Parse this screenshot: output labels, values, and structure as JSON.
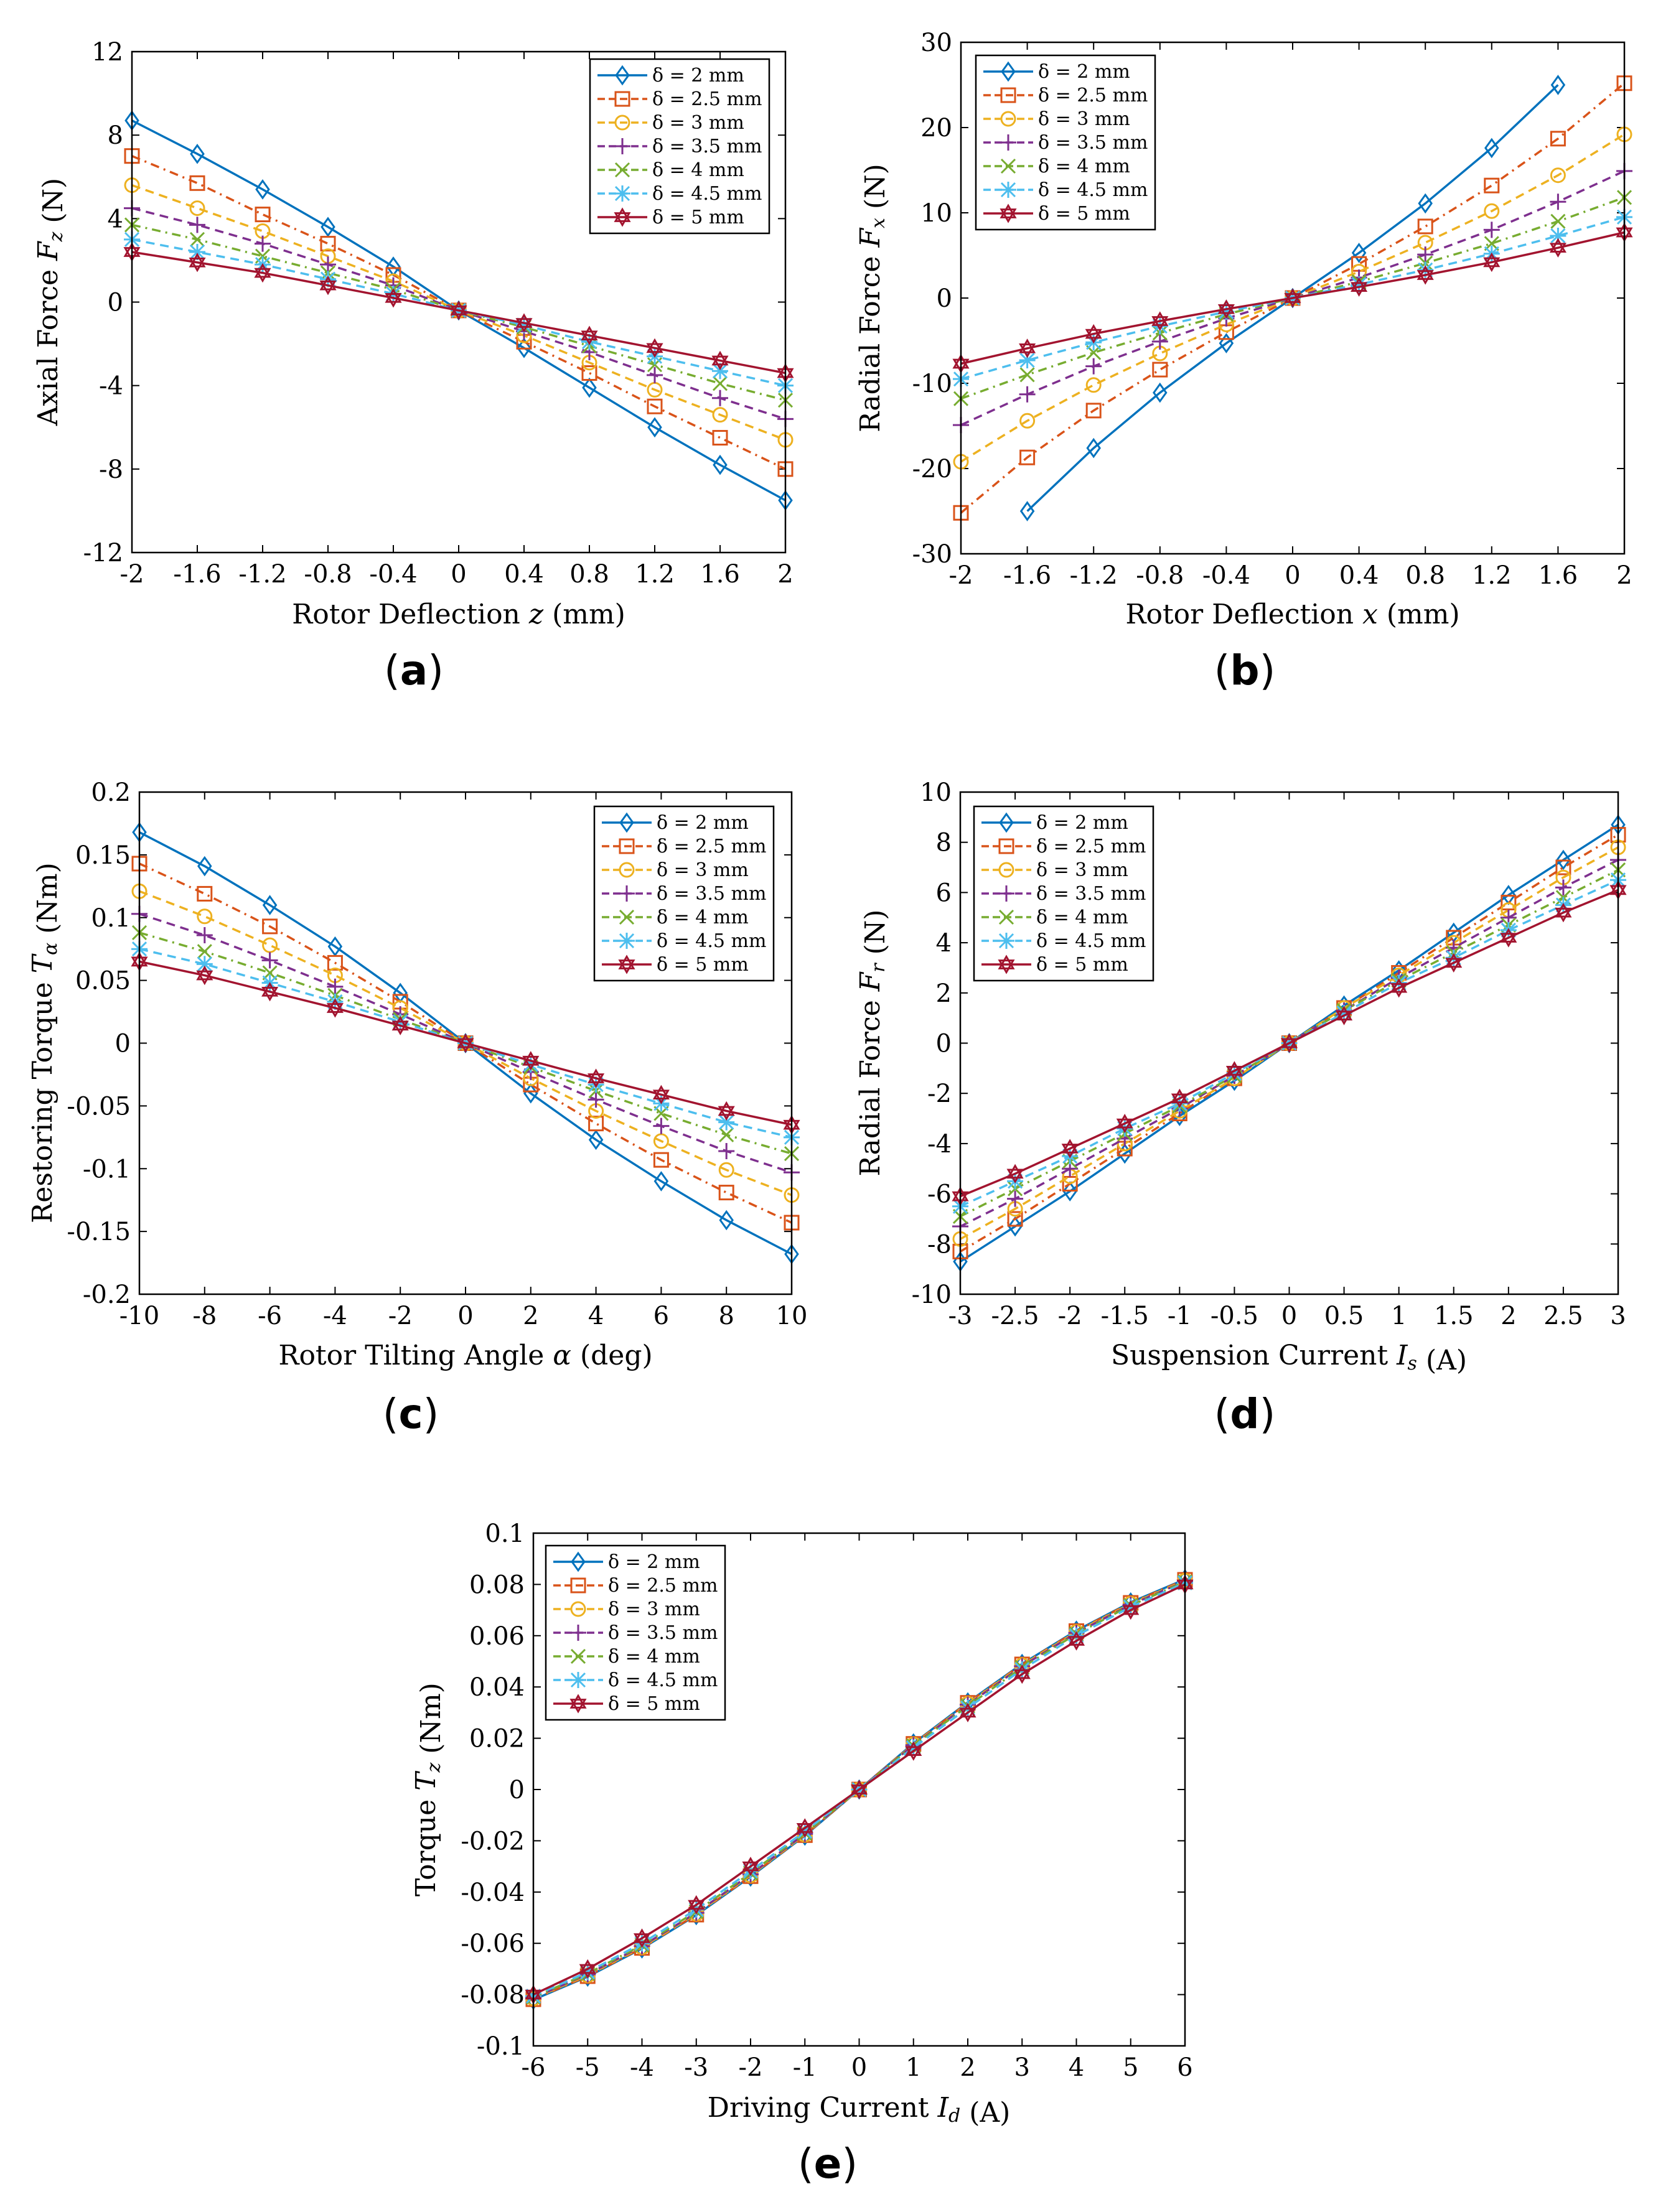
{
  "legend_labels": [
    "δ = 2 mm",
    "δ = 2.5 mm",
    "δ = 3 mm",
    "δ = 3.5 mm",
    "δ = 4 mm",
    "δ = 4.5 mm",
    "δ = 5 mm"
  ],
  "series_style": [
    {
      "color": "#0072BD",
      "dash": "",
      "marker": "diamond"
    },
    {
      "color": "#D95319",
      "dash": "14,8,3,8",
      "marker": "square"
    },
    {
      "color": "#EDB120",
      "dash": "14,9",
      "marker": "circle"
    },
    {
      "color": "#7E2F8E",
      "dash": "14,9",
      "marker": "plus"
    },
    {
      "color": "#77AC30",
      "dash": "14,8,3,8",
      "marker": "x"
    },
    {
      "color": "#4DBEEE",
      "dash": "14,9",
      "marker": "asterisk"
    },
    {
      "color": "#A2142F",
      "dash": "",
      "marker": "hexagram"
    }
  ],
  "chart_data": [
    {
      "id": "a",
      "type": "line",
      "caption": "(a)",
      "xlabel": "Rotor Deflection z (mm)",
      "ylabel": "Axial Force Fz (N)",
      "xlim": [
        -2,
        2
      ],
      "ylim": [
        -12,
        12
      ],
      "xticks": [
        -2,
        -1.6,
        -1.2,
        -0.8,
        -0.4,
        0,
        0.4,
        0.8,
        1.2,
        1.6,
        2
      ],
      "yticks": [
        -12,
        -8,
        -4,
        0,
        4,
        8,
        12
      ],
      "x": [
        -2,
        -1.6,
        -1.2,
        -0.8,
        -0.4,
        0,
        0.4,
        0.8,
        1.2,
        1.6,
        2
      ],
      "series": [
        {
          "name": "δ = 2 mm",
          "values": [
            8.7,
            7.1,
            5.4,
            3.6,
            1.7,
            -0.4,
            -2.2,
            -4.1,
            -6.0,
            -7.8,
            -9.5
          ]
        },
        {
          "name": "δ = 2.5 mm",
          "values": [
            7.0,
            5.7,
            4.2,
            2.8,
            1.3,
            -0.4,
            -1.9,
            -3.4,
            -5.0,
            -6.5,
            -8.0
          ]
        },
        {
          "name": "δ = 3 mm",
          "values": [
            5.6,
            4.5,
            3.4,
            2.2,
            1.0,
            -0.4,
            -1.6,
            -2.9,
            -4.2,
            -5.4,
            -6.6
          ]
        },
        {
          "name": "δ = 3.5 mm",
          "values": [
            4.5,
            3.7,
            2.8,
            1.8,
            0.8,
            -0.4,
            -1.4,
            -2.4,
            -3.5,
            -4.6,
            -5.6
          ]
        },
        {
          "name": "δ = 4 mm",
          "values": [
            3.7,
            3.0,
            2.2,
            1.4,
            0.6,
            -0.4,
            -1.2,
            -2.1,
            -3.0,
            -3.9,
            -4.7
          ]
        },
        {
          "name": "δ = 4.5 mm",
          "values": [
            3.0,
            2.4,
            1.8,
            1.1,
            0.4,
            -0.4,
            -1.1,
            -1.9,
            -2.6,
            -3.3,
            -4.0
          ]
        },
        {
          "name": "δ = 5 mm",
          "values": [
            2.4,
            1.9,
            1.4,
            0.8,
            0.2,
            -0.4,
            -1.0,
            -1.6,
            -2.2,
            -2.8,
            -3.4
          ]
        }
      ]
    },
    {
      "id": "b",
      "type": "line",
      "caption": "(b)",
      "xlabel": "Rotor Deflection x (mm)",
      "ylabel": "Radial Force Fx (N)",
      "xlim": [
        -2,
        2
      ],
      "ylim": [
        -30,
        30
      ],
      "xticks": [
        -2,
        -1.6,
        -1.2,
        -0.8,
        -0.4,
        0,
        0.4,
        0.8,
        1.2,
        1.6,
        2
      ],
      "yticks": [
        -30,
        -20,
        -10,
        0,
        10,
        20,
        30
      ],
      "x": [
        -2,
        -1.6,
        -1.2,
        -0.8,
        -0.4,
        0,
        0.4,
        0.8,
        1.2,
        1.6,
        2
      ],
      "series": [
        {
          "name": "δ = 2 mm",
          "values": [
            null,
            -25.0,
            -17.6,
            -11.1,
            -5.3,
            0,
            5.3,
            11.1,
            17.6,
            25.0,
            null
          ]
        },
        {
          "name": "δ = 2.5 mm",
          "values": [
            -25.2,
            -18.7,
            -13.2,
            -8.4,
            -4.0,
            0,
            4.0,
            8.4,
            13.2,
            18.7,
            25.2
          ]
        },
        {
          "name": "δ = 3 mm",
          "values": [
            -19.2,
            -14.4,
            -10.2,
            -6.5,
            -3.1,
            0,
            3.1,
            6.5,
            10.2,
            14.4,
            19.2
          ]
        },
        {
          "name": "δ = 3.5 mm",
          "values": [
            -14.9,
            -11.3,
            -8.0,
            -5.1,
            -2.4,
            0,
            2.4,
            5.1,
            8.0,
            11.3,
            14.9
          ]
        },
        {
          "name": "δ = 4 mm",
          "values": [
            -11.8,
            -9.0,
            -6.4,
            -4.1,
            -1.9,
            0,
            1.9,
            4.1,
            6.4,
            9.0,
            11.8
          ]
        },
        {
          "name": "δ = 4.5 mm",
          "values": [
            -9.5,
            -7.3,
            -5.2,
            -3.3,
            -1.6,
            0,
            1.6,
            3.3,
            5.2,
            7.3,
            9.5
          ]
        },
        {
          "name": "δ = 5 mm",
          "values": [
            -7.7,
            -5.9,
            -4.2,
            -2.7,
            -1.3,
            0,
            1.3,
            2.7,
            4.2,
            5.9,
            7.7
          ]
        }
      ]
    },
    {
      "id": "c",
      "type": "line",
      "caption": "(c)",
      "xlabel": "Rotor Tilting Angle α (deg)",
      "ylabel": "Restoring Torque Tα (Nm)",
      "xlim": [
        -10,
        10
      ],
      "ylim": [
        -0.2,
        0.2
      ],
      "xticks": [
        -10,
        -8,
        -6,
        -4,
        -2,
        0,
        2,
        4,
        6,
        8,
        10
      ],
      "yticks": [
        -0.2,
        -0.15,
        -0.1,
        -0.05,
        0,
        0.05,
        0.1,
        0.15,
        0.2
      ],
      "ytick_labels": [
        "-0.2",
        "-0.15",
        "-0.1",
        "-0.05",
        "0",
        "0.05",
        "0.1",
        "0.15",
        "0.2"
      ],
      "x": [
        -10,
        -8,
        -6,
        -4,
        -2,
        0,
        2,
        4,
        6,
        8,
        10
      ],
      "series": [
        {
          "name": "δ = 2 mm",
          "values": [
            0.168,
            0.141,
            0.11,
            0.077,
            0.04,
            0,
            -0.04,
            -0.077,
            -0.11,
            -0.141,
            -0.168
          ]
        },
        {
          "name": "δ = 2.5 mm",
          "values": [
            0.143,
            0.119,
            0.093,
            0.064,
            0.033,
            0,
            -0.033,
            -0.064,
            -0.093,
            -0.119,
            -0.143
          ]
        },
        {
          "name": "δ = 3 mm",
          "values": [
            0.121,
            0.101,
            0.078,
            0.054,
            0.028,
            0,
            -0.028,
            -0.054,
            -0.078,
            -0.101,
            -0.121
          ]
        },
        {
          "name": "δ = 3.5 mm",
          "values": [
            0.103,
            0.086,
            0.066,
            0.045,
            0.023,
            0,
            -0.023,
            -0.045,
            -0.066,
            -0.086,
            -0.103
          ]
        },
        {
          "name": "δ = 4 mm",
          "values": [
            0.088,
            0.073,
            0.056,
            0.038,
            0.019,
            0,
            -0.019,
            -0.038,
            -0.056,
            -0.073,
            -0.088
          ]
        },
        {
          "name": "δ = 4.5 mm",
          "values": [
            0.075,
            0.063,
            0.048,
            0.033,
            0.017,
            0,
            -0.017,
            -0.033,
            -0.048,
            -0.063,
            -0.075
          ]
        },
        {
          "name": "δ = 5 mm",
          "values": [
            0.065,
            0.054,
            0.041,
            0.028,
            0.014,
            0,
            -0.014,
            -0.028,
            -0.041,
            -0.054,
            -0.065
          ]
        }
      ]
    },
    {
      "id": "d",
      "type": "line",
      "caption": "(d)",
      "xlabel": "Suspension Current Is (A)",
      "ylabel": "Radial Force Fr (N)",
      "xlim": [
        -3,
        3
      ],
      "ylim": [
        -10,
        10
      ],
      "xticks": [
        -3,
        -2.5,
        -2,
        -1.5,
        -1,
        -0.5,
        0,
        0.5,
        1,
        1.5,
        2,
        2.5,
        3
      ],
      "yticks": [
        -10,
        -8,
        -6,
        -4,
        -2,
        0,
        2,
        4,
        6,
        8,
        10
      ],
      "x": [
        -3,
        -2.5,
        -2,
        -1.5,
        -1,
        -0.5,
        0,
        0.5,
        1,
        1.5,
        2,
        2.5,
        3
      ],
      "series": [
        {
          "name": "δ = 2 mm",
          "values": [
            -8.7,
            -7.3,
            -5.9,
            -4.4,
            -2.9,
            -1.5,
            0,
            1.5,
            2.9,
            4.4,
            5.9,
            7.3,
            8.7
          ]
        },
        {
          "name": "δ = 2.5 mm",
          "values": [
            -8.3,
            -7.0,
            -5.6,
            -4.2,
            -2.8,
            -1.4,
            0,
            1.4,
            2.8,
            4.2,
            5.6,
            7.0,
            8.3
          ]
        },
        {
          "name": "δ = 3 mm",
          "values": [
            -7.8,
            -6.6,
            -5.3,
            -4.0,
            -2.7,
            -1.4,
            0,
            1.4,
            2.7,
            4.0,
            5.3,
            6.6,
            7.8
          ]
        },
        {
          "name": "δ = 3.5 mm",
          "values": [
            -7.3,
            -6.2,
            -5.0,
            -3.8,
            -2.6,
            -1.3,
            0,
            1.3,
            2.6,
            3.8,
            5.0,
            6.2,
            7.3
          ]
        },
        {
          "name": "δ = 4 mm",
          "values": [
            -6.9,
            -5.8,
            -4.7,
            -3.6,
            -2.5,
            -1.3,
            0,
            1.3,
            2.5,
            3.6,
            4.7,
            5.8,
            6.9
          ]
        },
        {
          "name": "δ = 4.5 mm",
          "values": [
            -6.5,
            -5.5,
            -4.5,
            -3.4,
            -2.4,
            -1.2,
            0,
            1.2,
            2.4,
            3.4,
            4.5,
            5.5,
            6.5
          ]
        },
        {
          "name": "δ = 5 mm",
          "values": [
            -6.1,
            -5.2,
            -4.2,
            -3.2,
            -2.2,
            -1.1,
            0,
            1.1,
            2.2,
            3.2,
            4.2,
            5.2,
            6.1
          ]
        }
      ]
    },
    {
      "id": "e",
      "type": "line",
      "caption": "(e)",
      "xlabel": "Driving Current Id (A)",
      "ylabel": "Torque Tz (Nm)",
      "xlim": [
        -6,
        6
      ],
      "ylim": [
        -0.1,
        0.1
      ],
      "xticks": [
        -6,
        -5,
        -4,
        -3,
        -2,
        -1,
        0,
        1,
        2,
        3,
        4,
        5,
        6
      ],
      "yticks": [
        -0.1,
        -0.08,
        -0.06,
        -0.04,
        -0.02,
        0,
        0.02,
        0.04,
        0.06,
        0.08,
        0.1
      ],
      "ytick_labels": [
        "-0.1",
        "-0.08",
        "-0.06",
        "-0.04",
        "-0.02",
        "0",
        "0.02",
        "0.04",
        "0.06",
        "0.08",
        "0.1"
      ],
      "x": [
        -6,
        -5,
        -4,
        -3,
        -2,
        -1,
        0,
        1,
        2,
        3,
        4,
        5,
        6
      ],
      "series": [
        {
          "name": "δ = 2 mm",
          "values": [
            -0.082,
            -0.073,
            -0.062,
            -0.049,
            -0.034,
            -0.018,
            0,
            0.018,
            0.034,
            0.049,
            0.062,
            0.073,
            0.082
          ]
        },
        {
          "name": "δ = 2.5 mm",
          "values": [
            -0.0818,
            -0.0728,
            -0.0618,
            -0.0488,
            -0.0338,
            -0.0178,
            0,
            0.0178,
            0.0338,
            0.0488,
            0.0618,
            0.0728,
            0.0818
          ]
        },
        {
          "name": "δ = 3 mm",
          "values": [
            -0.0815,
            -0.0725,
            -0.0615,
            -0.0485,
            -0.0335,
            -0.0176,
            0,
            0.0176,
            0.0335,
            0.0485,
            0.0615,
            0.0725,
            0.0815
          ]
        },
        {
          "name": "δ = 3.5 mm",
          "values": [
            -0.0812,
            -0.0721,
            -0.0611,
            -0.0481,
            -0.0331,
            -0.0173,
            0,
            0.0173,
            0.0331,
            0.0481,
            0.0611,
            0.0721,
            0.0812
          ]
        },
        {
          "name": "δ = 4 mm",
          "values": [
            -0.081,
            -0.0718,
            -0.0607,
            -0.0476,
            -0.0326,
            -0.017,
            0,
            0.017,
            0.0326,
            0.0476,
            0.0607,
            0.0718,
            0.081
          ]
        },
        {
          "name": "δ = 4.5 mm",
          "values": [
            -0.0806,
            -0.0712,
            -0.06,
            -0.0468,
            -0.0318,
            -0.0163,
            0,
            0.0163,
            0.0318,
            0.0468,
            0.06,
            0.0712,
            0.0806
          ]
        },
        {
          "name": "δ = 5 mm",
          "values": [
            -0.08,
            -0.07,
            -0.058,
            -0.045,
            -0.03,
            -0.015,
            0,
            0.015,
            0.03,
            0.045,
            0.058,
            0.07,
            0.08
          ]
        }
      ]
    }
  ]
}
